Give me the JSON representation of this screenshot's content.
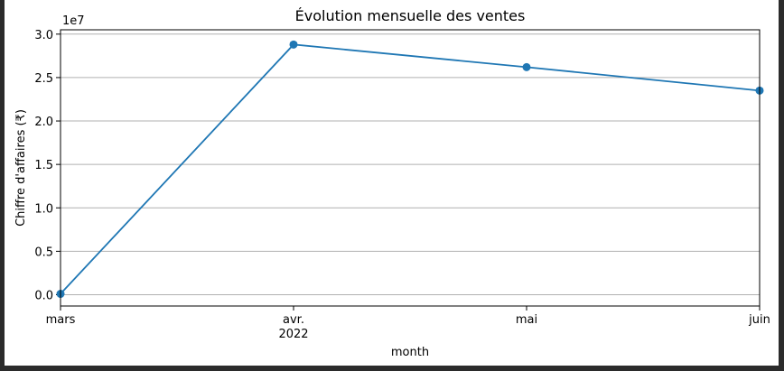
{
  "chart_data": {
    "type": "line",
    "title": "Évolution mensuelle des ventes",
    "xlabel": "month",
    "ylabel": "Chiffre d'affaires (₹)",
    "y_multiplier_label": "1e7",
    "x_tick_labels": [
      "mars",
      "avr.",
      "mai",
      "juin"
    ],
    "x_year_label": "2022",
    "y_tick_labels": [
      "0.0",
      "0.5",
      "1.0",
      "1.5",
      "2.0",
      "2.5",
      "3.0"
    ],
    "y_ticks": [
      0,
      0.5,
      1.0,
      1.5,
      2.0,
      2.5,
      3.0
    ],
    "ylim": [
      -0.13,
      3.05
    ],
    "grid": "horizontal",
    "series": [
      {
        "color": "#1f77b4",
        "categories": [
          "mars",
          "avr.",
          "mai",
          "juin"
        ],
        "values": [
          0.01,
          2.88,
          2.62,
          2.35
        ]
      }
    ]
  }
}
